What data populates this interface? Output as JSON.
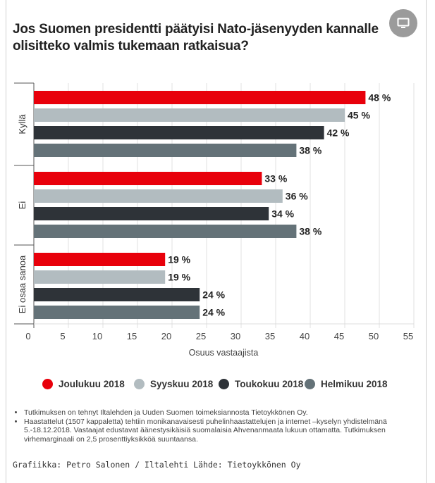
{
  "title": "Jos Suomen presidentti päätyisi Nato-jäsenyyden kannalle olisitteko valmis tukemaan ratkaisua?",
  "screen_icon": "monitor-icon",
  "chart_data": {
    "type": "bar",
    "orientation": "horizontal",
    "categories": [
      "Kyllä",
      "Ei",
      "Ei osaa sanoa"
    ],
    "series": [
      {
        "name": "Joulukuu 2018",
        "color": "#e8000b",
        "values": [
          48,
          33,
          19
        ]
      },
      {
        "name": "Syyskuu 2018",
        "color": "#b2bcc0",
        "values": [
          45,
          36,
          19
        ]
      },
      {
        "name": "Toukokuu 2018",
        "color": "#2e3338",
        "values": [
          42,
          34,
          24
        ]
      },
      {
        "name": "Helmikuu 2018",
        "color": "#647278",
        "values": [
          38,
          38,
          24
        ]
      }
    ],
    "value_suffix": " %",
    "xlabel": "Osuus vastaajista",
    "xlim": [
      0,
      55
    ],
    "xticks": [
      "0",
      "5",
      "10",
      "15",
      "20",
      "25",
      "30",
      "35",
      "40",
      "45",
      "50",
      "55"
    ],
    "grid": true
  },
  "legend": [
    {
      "label": "Joulukuu 2018",
      "color": "#e8000b"
    },
    {
      "label": "Syyskuu 2018",
      "color": "#b2bcc0"
    },
    {
      "label": "Toukokuu 2018",
      "color": "#2e3338"
    },
    {
      "label": "Helmikuu 2018",
      "color": "#647278"
    }
  ],
  "notes": [
    "Tutkimuksen on tehnyt Iltalehden ja Uuden Suomen toimeksiannosta Tietoykkönen Oy.",
    "Haastattelut (1507 kappaletta) tehtiin monikanavaisesti puhelinhaastattelujen ja internet –kyselyn yhdistelmänä 5.-18.12.2018. Vastaajat edustavat äänestysikäisiä suomalaisia Ahvenanmaata lukuun ottamatta. Tutkimuksen virhemarginaali on 2,5 prosenttiyksikköä suuntaansa."
  ],
  "credits": "Grafiikka: Petro Salonen / Iltalehti  Lähde: Tietoykkönen Oy"
}
